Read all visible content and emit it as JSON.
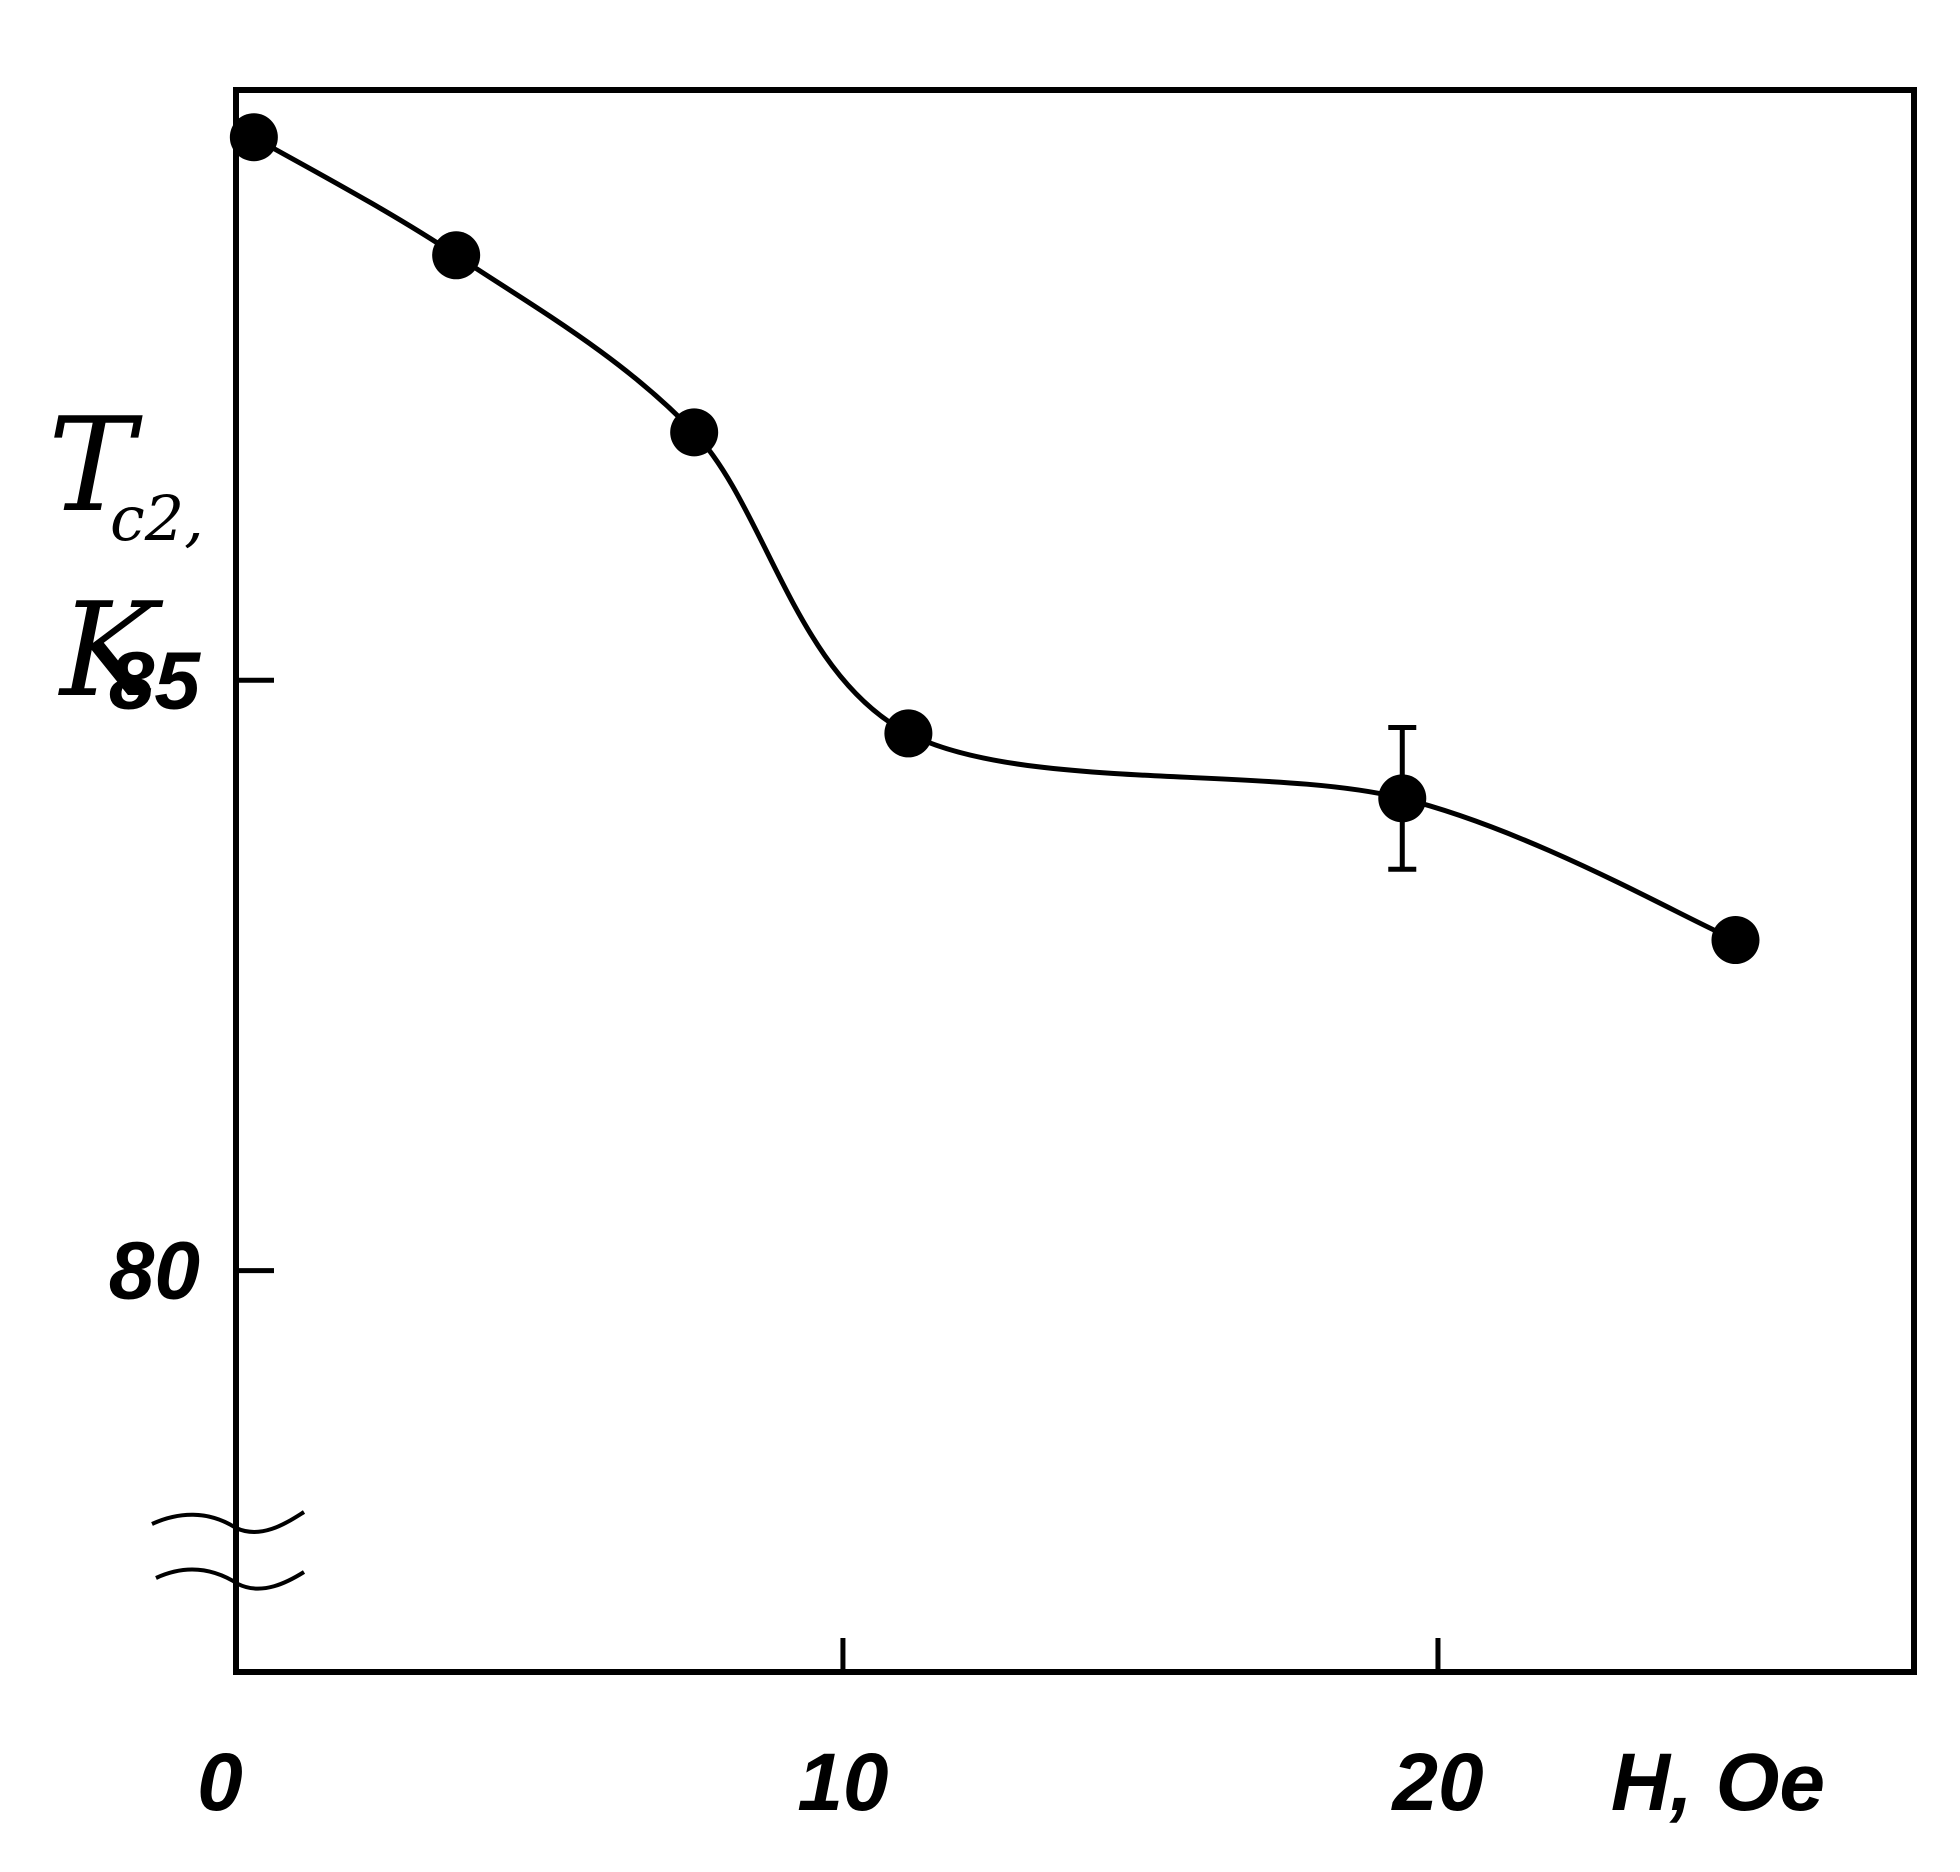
{
  "chart_data": {
    "type": "scatter",
    "xlabel": "H, Oe",
    "ylabel": {
      "symbol": "T",
      "subscript": "c2,",
      "unit": "K"
    },
    "x_ticks": [
      {
        "value": 0,
        "label": "0"
      },
      {
        "value": 10,
        "label": "10"
      },
      {
        "value": 20,
        "label": "20"
      }
    ],
    "y_ticks": [
      {
        "value": 80,
        "label": "80"
      },
      {
        "value": 85,
        "label": "85"
      }
    ],
    "xlim": [
      -0.2,
      28.0
    ],
    "ylim": [
      76.6,
      90.0
    ],
    "y_axis_break": true,
    "grid": false,
    "connected_by_smooth_curve": true,
    "series": [
      {
        "points": [
          {
            "x": 0.1,
            "y": 89.6
          },
          {
            "x": 3.5,
            "y": 88.6
          },
          {
            "x": 7.5,
            "y": 87.1
          },
          {
            "x": 11.1,
            "y": 84.55
          },
          {
            "x": 19.4,
            "y": 84.0,
            "error": 0.6
          },
          {
            "x": 25.0,
            "y": 82.8
          }
        ]
      }
    ],
    "colors": {
      "foreground": "#000000",
      "background": "#ffffff"
    }
  }
}
